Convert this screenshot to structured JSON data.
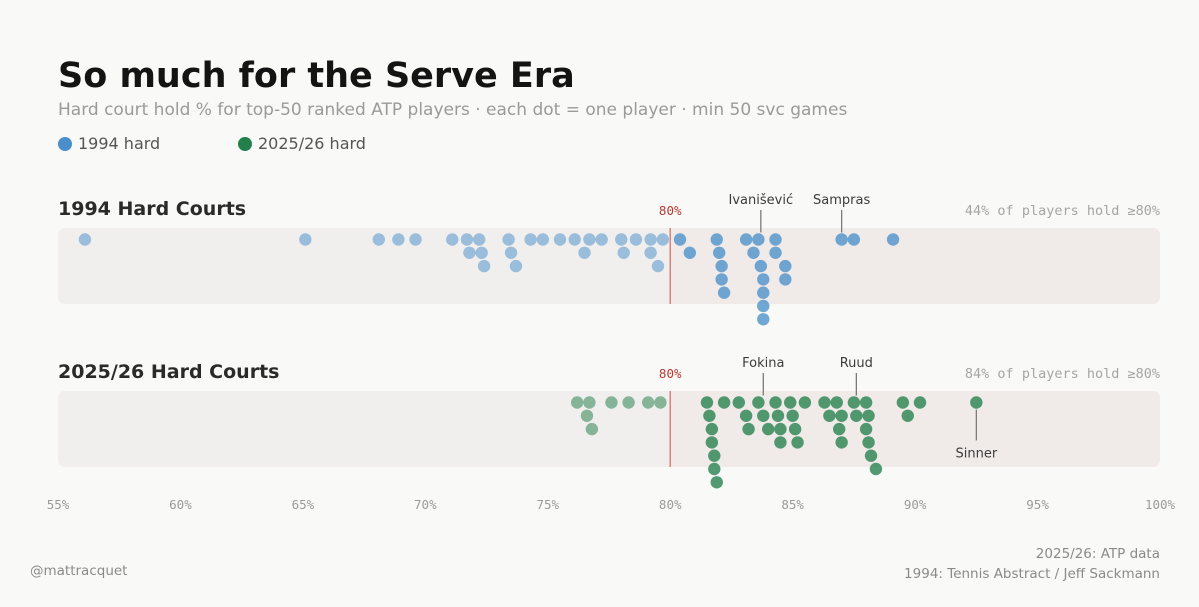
{
  "header": {
    "title": "So much for the Serve Era",
    "subtitle": "Hard court hold % for top-50 ranked ATP players · each dot = one player · min 50 svc games"
  },
  "legend": [
    {
      "label": "1994 hard",
      "color": "#4a8fcb"
    },
    {
      "label": "2025/26 hard",
      "color": "#237f4c"
    }
  ],
  "footer": {
    "credit": "@mattracquet",
    "source_line1": "2025/26: ATP data",
    "source_line2": "1994: Tennis Abstract / Jeff Sackmann"
  },
  "chart_data": {
    "type": "scatter",
    "subtype": "beeswarm",
    "x_axis": {
      "range": [
        55,
        100
      ],
      "ticks": [
        "55%",
        "60%",
        "65%",
        "70%",
        "75%",
        "80%",
        "85%",
        "90%",
        "95%",
        "100%"
      ],
      "unit": "%"
    },
    "reference_line": {
      "value": 80,
      "label": "80%",
      "color": "#d9827e"
    },
    "panels": [
      {
        "title": "1994 Hard Courts",
        "share_label": "44% of players hold ≥80%",
        "color": "#4a8fcb",
        "values": [
          56.1,
          65.1,
          68.1,
          68.9,
          69.6,
          71.1,
          71.7,
          71.8,
          72.2,
          72.3,
          72.4,
          73.4,
          73.5,
          73.7,
          74.3,
          74.8,
          75.5,
          76.1,
          76.5,
          76.7,
          77.2,
          78.0,
          78.1,
          78.6,
          79.2,
          79.2,
          79.5,
          79.7,
          80.4,
          80.8,
          81.9,
          82.1,
          82.0,
          82.1,
          82.2,
          83.1,
          83.4,
          83.6,
          83.7,
          83.8,
          83.8,
          83.8,
          83.8,
          84.3,
          84.3,
          84.7,
          84.7,
          87.0,
          87.5,
          89.1
        ],
        "annotations": [
          {
            "label": "Ivanišević",
            "value": 83.7,
            "position": "above"
          },
          {
            "label": "Sampras",
            "value": 87.0,
            "position": "above"
          }
        ]
      },
      {
        "title": "2025/26 Hard Courts",
        "share_label": "84% of players hold ≥80%",
        "color": "#237f4c",
        "values": [
          76.2,
          76.6,
          76.7,
          76.8,
          77.6,
          78.3,
          79.1,
          79.6,
          81.5,
          81.6,
          81.7,
          81.7,
          81.8,
          81.9,
          81.8,
          82.2,
          82.8,
          83.1,
          83.2,
          83.6,
          83.8,
          84.0,
          84.3,
          84.4,
          84.5,
          84.5,
          84.9,
          85.0,
          85.1,
          85.2,
          85.5,
          86.3,
          86.5,
          86.8,
          86.9,
          87.0,
          87.0,
          87.5,
          87.6,
          88.0,
          88.0,
          88.1,
          88.1,
          88.2,
          88.4,
          89.5,
          89.7,
          90.2,
          92.5
        ],
        "annotations": [
          {
            "label": "Fokina",
            "value": 83.8,
            "position": "above"
          },
          {
            "label": "Ruud",
            "value": 87.6,
            "position": "above"
          },
          {
            "label": "Sinner",
            "value": 92.5,
            "position": "below"
          }
        ]
      }
    ]
  }
}
